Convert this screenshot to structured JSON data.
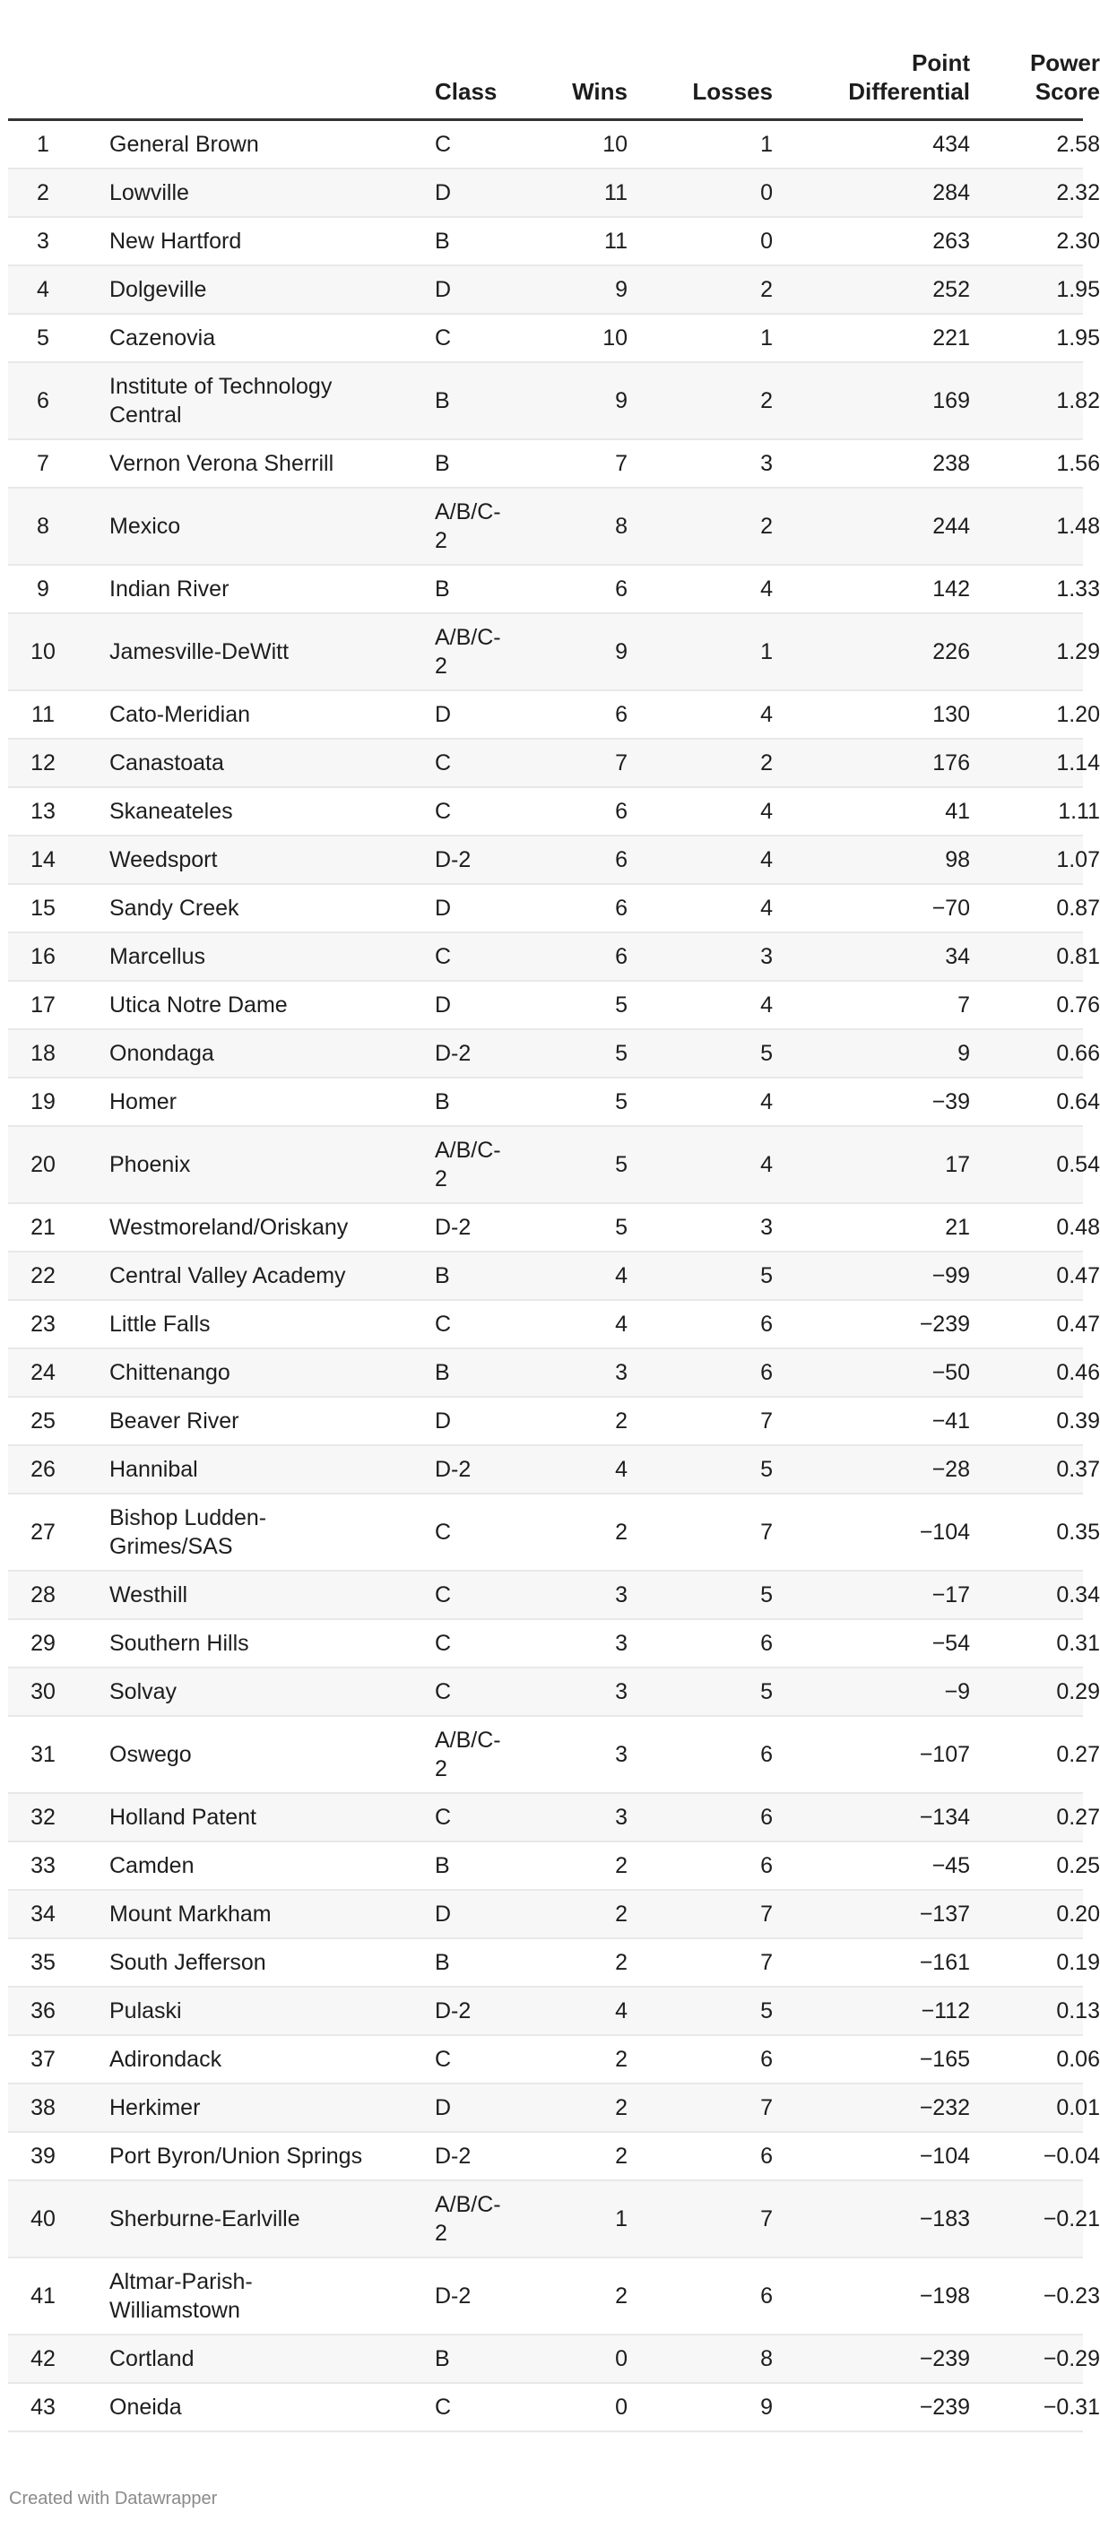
{
  "table": {
    "columns": [
      "",
      "",
      "Class",
      "Wins",
      "Losses",
      "Point Differential",
      "Power Score"
    ],
    "rows": [
      {
        "rank": "1",
        "team": "General Brown",
        "class": "C",
        "wins": "10",
        "losses": "1",
        "pd": "434",
        "ps": "2.58"
      },
      {
        "rank": "2",
        "team": "Lowville",
        "class": "D",
        "wins": "11",
        "losses": "0",
        "pd": "284",
        "ps": "2.32"
      },
      {
        "rank": "3",
        "team": "New Hartford",
        "class": "B",
        "wins": "11",
        "losses": "0",
        "pd": "263",
        "ps": "2.30"
      },
      {
        "rank": "4",
        "team": "Dolgeville",
        "class": "D",
        "wins": "9",
        "losses": "2",
        "pd": "252",
        "ps": "1.95"
      },
      {
        "rank": "5",
        "team": "Cazenovia",
        "class": "C",
        "wins": "10",
        "losses": "1",
        "pd": "221",
        "ps": "1.95"
      },
      {
        "rank": "6",
        "team": "Institute of Technology Central",
        "class": "B",
        "wins": "9",
        "losses": "2",
        "pd": "169",
        "ps": "1.82"
      },
      {
        "rank": "7",
        "team": "Vernon Verona Sherrill",
        "class": "B",
        "wins": "7",
        "losses": "3",
        "pd": "238",
        "ps": "1.56"
      },
      {
        "rank": "8",
        "team": "Mexico",
        "class": "A/B/C-2",
        "wins": "8",
        "losses": "2",
        "pd": "244",
        "ps": "1.48"
      },
      {
        "rank": "9",
        "team": "Indian River",
        "class": "B",
        "wins": "6",
        "losses": "4",
        "pd": "142",
        "ps": "1.33"
      },
      {
        "rank": "10",
        "team": "Jamesville-DeWitt",
        "class": "A/B/C-2",
        "wins": "9",
        "losses": "1",
        "pd": "226",
        "ps": "1.29"
      },
      {
        "rank": "11",
        "team": "Cato-Meridian",
        "class": "D",
        "wins": "6",
        "losses": "4",
        "pd": "130",
        "ps": "1.20"
      },
      {
        "rank": "12",
        "team": "Canastoata",
        "class": "C",
        "wins": "7",
        "losses": "2",
        "pd": "176",
        "ps": "1.14"
      },
      {
        "rank": "13",
        "team": "Skaneateles",
        "class": "C",
        "wins": "6",
        "losses": "4",
        "pd": "41",
        "ps": "1.11"
      },
      {
        "rank": "14",
        "team": "Weedsport",
        "class": "D-2",
        "wins": "6",
        "losses": "4",
        "pd": "98",
        "ps": "1.07"
      },
      {
        "rank": "15",
        "team": "Sandy Creek",
        "class": "D",
        "wins": "6",
        "losses": "4",
        "pd": "−70",
        "ps": "0.87"
      },
      {
        "rank": "16",
        "team": "Marcellus",
        "class": "C",
        "wins": "6",
        "losses": "3",
        "pd": "34",
        "ps": "0.81"
      },
      {
        "rank": "17",
        "team": "Utica Notre Dame",
        "class": "D",
        "wins": "5",
        "losses": "4",
        "pd": "7",
        "ps": "0.76"
      },
      {
        "rank": "18",
        "team": "Onondaga",
        "class": "D-2",
        "wins": "5",
        "losses": "5",
        "pd": "9",
        "ps": "0.66"
      },
      {
        "rank": "19",
        "team": "Homer",
        "class": "B",
        "wins": "5",
        "losses": "4",
        "pd": "−39",
        "ps": "0.64"
      },
      {
        "rank": "20",
        "team": "Phoenix",
        "class": "A/B/C-2",
        "wins": "5",
        "losses": "4",
        "pd": "17",
        "ps": "0.54"
      },
      {
        "rank": "21",
        "team": "Westmoreland/Oriskany",
        "class": "D-2",
        "wins": "5",
        "losses": "3",
        "pd": "21",
        "ps": "0.48"
      },
      {
        "rank": "22",
        "team": "Central Valley Academy",
        "class": "B",
        "wins": "4",
        "losses": "5",
        "pd": "−99",
        "ps": "0.47"
      },
      {
        "rank": "23",
        "team": "Little Falls",
        "class": "C",
        "wins": "4",
        "losses": "6",
        "pd": "−239",
        "ps": "0.47"
      },
      {
        "rank": "24",
        "team": "Chittenango",
        "class": "B",
        "wins": "3",
        "losses": "6",
        "pd": "−50",
        "ps": "0.46"
      },
      {
        "rank": "25",
        "team": "Beaver River",
        "class": "D",
        "wins": "2",
        "losses": "7",
        "pd": "−41",
        "ps": "0.39"
      },
      {
        "rank": "26",
        "team": "Hannibal",
        "class": "D-2",
        "wins": "4",
        "losses": "5",
        "pd": "−28",
        "ps": "0.37"
      },
      {
        "rank": "27",
        "team": "Bishop Ludden-Grimes/SAS",
        "class": "C",
        "wins": "2",
        "losses": "7",
        "pd": "−104",
        "ps": "0.35"
      },
      {
        "rank": "28",
        "team": "Westhill",
        "class": "C",
        "wins": "3",
        "losses": "5",
        "pd": "−17",
        "ps": "0.34"
      },
      {
        "rank": "29",
        "team": "Southern Hills",
        "class": "C",
        "wins": "3",
        "losses": "6",
        "pd": "−54",
        "ps": "0.31"
      },
      {
        "rank": "30",
        "team": "Solvay",
        "class": "C",
        "wins": "3",
        "losses": "5",
        "pd": "−9",
        "ps": "0.29"
      },
      {
        "rank": "31",
        "team": "Oswego",
        "class": "A/B/C-2",
        "wins": "3",
        "losses": "6",
        "pd": "−107",
        "ps": "0.27"
      },
      {
        "rank": "32",
        "team": "Holland Patent",
        "class": "C",
        "wins": "3",
        "losses": "6",
        "pd": "−134",
        "ps": "0.27"
      },
      {
        "rank": "33",
        "team": "Camden",
        "class": "B",
        "wins": "2",
        "losses": "6",
        "pd": "−45",
        "ps": "0.25"
      },
      {
        "rank": "34",
        "team": "Mount Markham",
        "class": "D",
        "wins": "2",
        "losses": "7",
        "pd": "−137",
        "ps": "0.20"
      },
      {
        "rank": "35",
        "team": "South Jefferson",
        "class": "B",
        "wins": "2",
        "losses": "7",
        "pd": "−161",
        "ps": "0.19"
      },
      {
        "rank": "36",
        "team": "Pulaski",
        "class": "D-2",
        "wins": "4",
        "losses": "5",
        "pd": "−112",
        "ps": "0.13"
      },
      {
        "rank": "37",
        "team": "Adirondack",
        "class": "C",
        "wins": "2",
        "losses": "6",
        "pd": "−165",
        "ps": "0.06"
      },
      {
        "rank": "38",
        "team": "Herkimer",
        "class": "D",
        "wins": "2",
        "losses": "7",
        "pd": "−232",
        "ps": "0.01"
      },
      {
        "rank": "39",
        "team": "Port Byron/Union Springs",
        "class": "D-2",
        "wins": "2",
        "losses": "6",
        "pd": "−104",
        "ps": "−0.04"
      },
      {
        "rank": "40",
        "team": "Sherburne-Earlville",
        "class": "A/B/C-2",
        "wins": "1",
        "losses": "7",
        "pd": "−183",
        "ps": "−0.21"
      },
      {
        "rank": "41",
        "team": "Altmar-Parish-Williamstown",
        "class": "D-2",
        "wins": "2",
        "losses": "6",
        "pd": "−198",
        "ps": "−0.23"
      },
      {
        "rank": "42",
        "team": "Cortland",
        "class": "B",
        "wins": "0",
        "losses": "8",
        "pd": "−239",
        "ps": "−0.29"
      },
      {
        "rank": "43",
        "team": "Oneida",
        "class": "C",
        "wins": "0",
        "losses": "9",
        "pd": "−239",
        "ps": "−0.31"
      }
    ]
  },
  "footer": "Created with Datawrapper"
}
